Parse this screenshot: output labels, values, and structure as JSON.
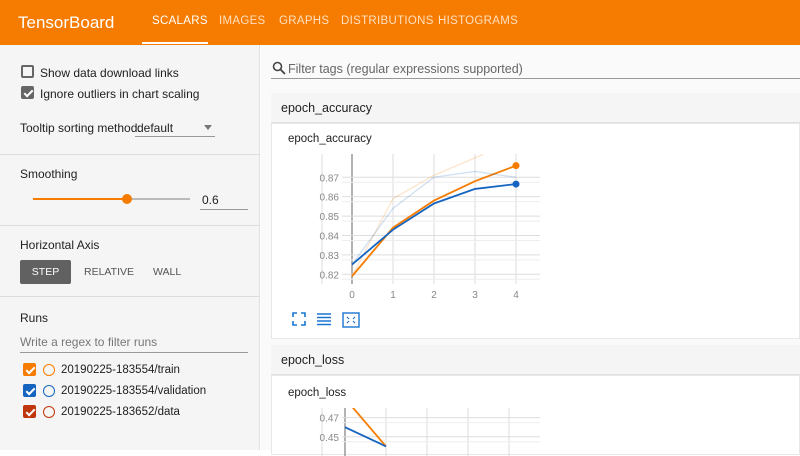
{
  "header": {
    "brand": "TensorBoard",
    "tabs": [
      "SCALARS",
      "IMAGES",
      "GRAPHS",
      "DISTRIBUTIONS",
      "HISTOGRAMS"
    ],
    "active_tab": "SCALARS"
  },
  "sidebar": {
    "show_download_links": {
      "label": "Show data download links",
      "checked": false
    },
    "ignore_outliers": {
      "label": "Ignore outliers in chart scaling",
      "checked": true
    },
    "tooltip_sorting": {
      "label": "Tooltip sorting method:",
      "value": "default"
    },
    "smoothing": {
      "label": "Smoothing",
      "value": "0.6",
      "fraction": 0.6
    },
    "horizontal_axis": {
      "label": "Horizontal Axis",
      "options": [
        "STEP",
        "RELATIVE",
        "WALL"
      ],
      "selected": "STEP"
    },
    "runs": {
      "label": "Runs",
      "filter_placeholder": "Write a regex to filter runs",
      "items": [
        {
          "name": "20190225-183554/train",
          "color": "#f57c00",
          "checked": true
        },
        {
          "name": "20190225-183554/validation",
          "color": "#1565c0",
          "checked": true
        },
        {
          "name": "20190225-183652/data",
          "color": "#bf360c",
          "checked": true
        }
      ]
    }
  },
  "main": {
    "filter_placeholder": "Filter tags (regular expressions supported)",
    "groups": [
      {
        "name": "epoch_accuracy"
      },
      {
        "name": "epoch_loss"
      }
    ]
  },
  "chart_data": [
    {
      "type": "line",
      "title": "epoch_accuracy",
      "x": [
        0,
        1,
        2,
        3,
        4
      ],
      "xticks": [
        "0",
        "1",
        "2",
        "3",
        "4"
      ],
      "yticks": [
        "0.82",
        "0.83",
        "0.84",
        "0.85",
        "0.86",
        "0.87"
      ],
      "ylim": [
        0.815,
        0.882
      ],
      "grid": true,
      "series": [
        {
          "name": "20190225-183554/train",
          "color": "#f57c00",
          "values": [
            0.819,
            0.844,
            0.858,
            0.868,
            0.876
          ],
          "raw": [
            0.819,
            0.859,
            0.871,
            0.88,
            0.89
          ]
        },
        {
          "name": "20190225-183554/validation",
          "color": "#1565c0",
          "values": [
            0.825,
            0.843,
            0.8565,
            0.864,
            0.8665
          ],
          "raw": [
            0.825,
            0.854,
            0.87,
            0.873,
            0.87
          ]
        }
      ]
    },
    {
      "type": "line",
      "title": "epoch_loss",
      "x": [
        0,
        1
      ],
      "yticks": [
        "0.47",
        "0.45"
      ],
      "ylim": [
        0.43,
        0.48
      ],
      "grid": true,
      "series": [
        {
          "name": "20190225-183554/train",
          "color": "#f57c00",
          "values": [
            0.49,
            0.44
          ]
        },
        {
          "name": "20190225-183554/validation",
          "color": "#1565c0",
          "values": [
            0.46,
            0.44
          ]
        }
      ]
    }
  ]
}
